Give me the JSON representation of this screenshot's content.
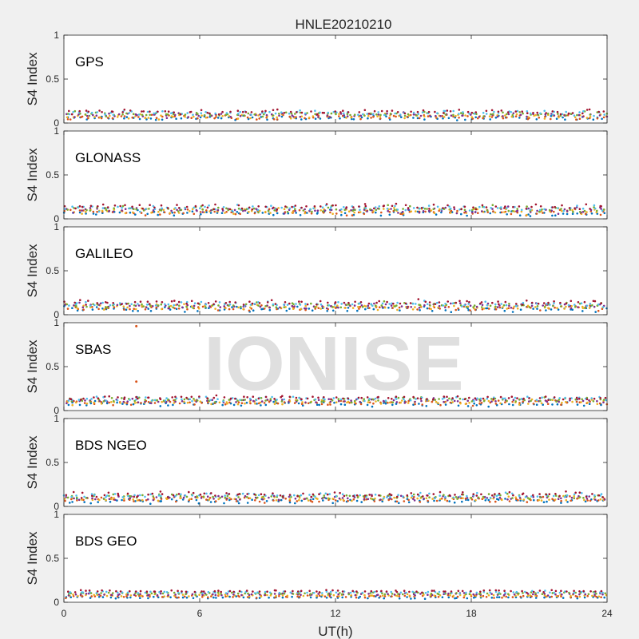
{
  "figure": {
    "title": "HNLE20210210",
    "watermark": "IONISE",
    "xlabel": "UT(h)",
    "ylabel": "S4 Index"
  },
  "chart_data": {
    "type": "scatter",
    "title": "HNLE20210210",
    "xlabel": "UT(h)",
    "ylabel": "S4 Index",
    "xlim": [
      0,
      24
    ],
    "ylim": [
      0,
      1
    ],
    "xticks": [
      "0",
      "6",
      "12",
      "18",
      "24"
    ],
    "yticks": [
      "0",
      "0.5",
      "1"
    ],
    "grid": false,
    "series_colors": [
      "#0072BD",
      "#D95319",
      "#EDB120",
      "#7E2F8E",
      "#77AC30",
      "#4DBEEE",
      "#A2142F"
    ],
    "panels": [
      {
        "label": "GPS",
        "baseline_s4": 0.09,
        "spread_s4": 0.04,
        "outliers": []
      },
      {
        "label": "GLONASS",
        "baseline_s4": 0.1,
        "spread_s4": 0.05,
        "outliers": []
      },
      {
        "label": "GALILEO",
        "baseline_s4": 0.1,
        "spread_s4": 0.045,
        "outliers": []
      },
      {
        "label": "SBAS",
        "baseline_s4": 0.11,
        "spread_s4": 0.04,
        "outliers": [
          {
            "x": 3.2,
            "y": 0.96
          },
          {
            "x": 3.2,
            "y": 0.33
          }
        ]
      },
      {
        "label": "BDS NGEO",
        "baseline_s4": 0.1,
        "spread_s4": 0.045,
        "outliers": []
      },
      {
        "label": "BDS GEO",
        "baseline_s4": 0.09,
        "spread_s4": 0.02,
        "outliers": []
      }
    ]
  }
}
